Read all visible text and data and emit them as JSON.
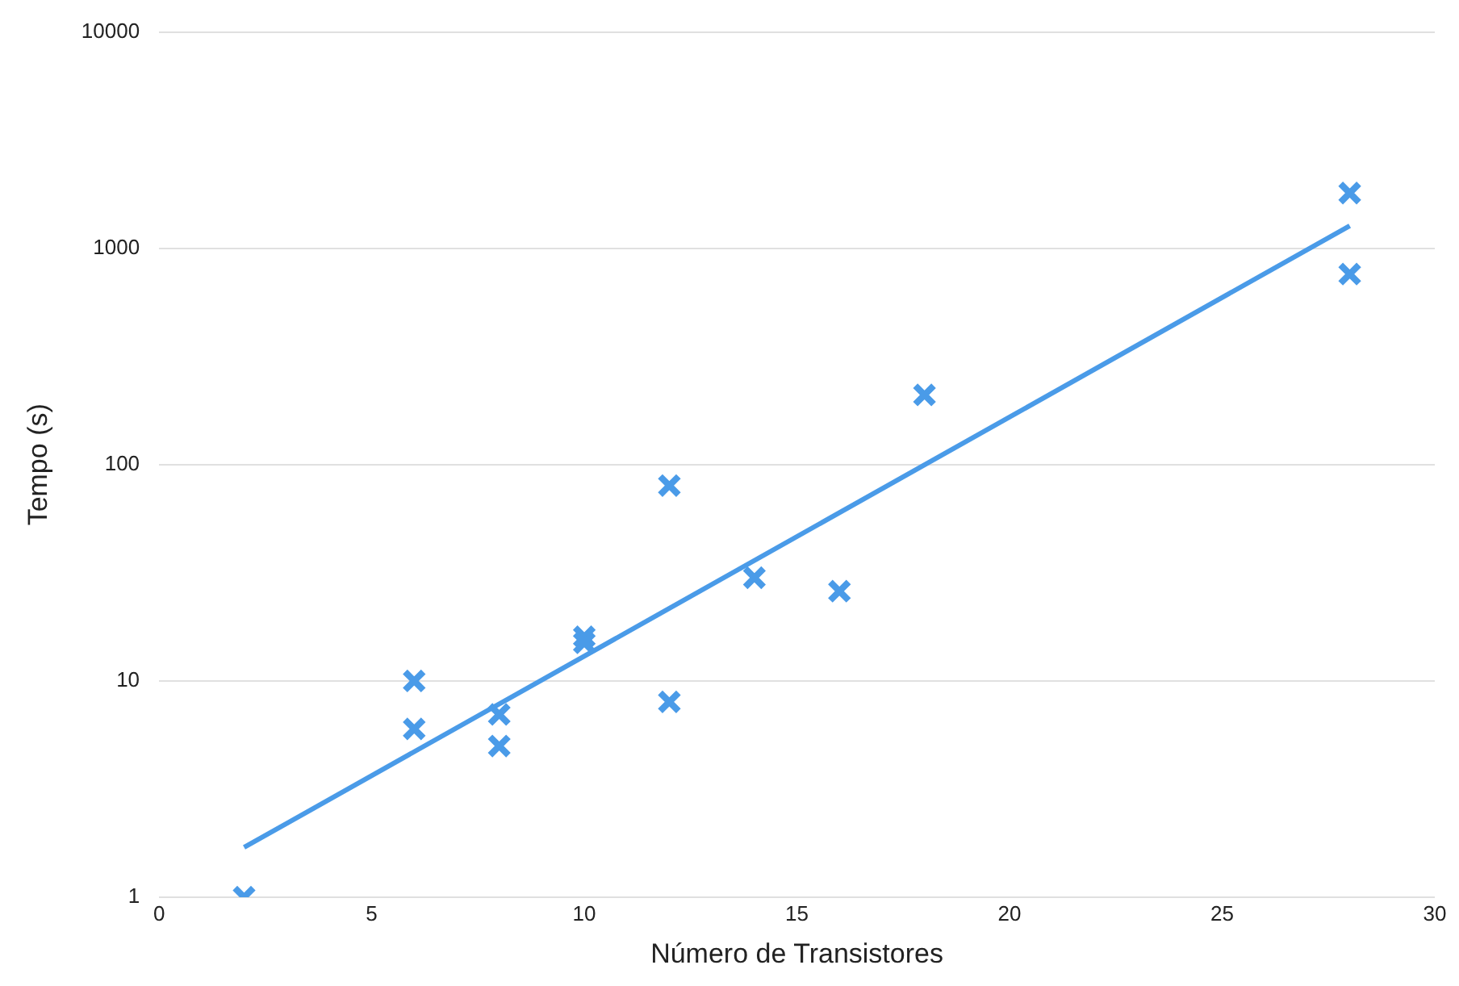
{
  "chart_data": {
    "type": "scatter",
    "xlabel": "Número de Transistores",
    "ylabel": "Tempo (s)",
    "log": "y",
    "grid": "y",
    "legend": false,
    "marker": "cross",
    "xlim": [
      0,
      30
    ],
    "xticks": [
      0,
      5,
      10,
      15,
      20,
      25,
      30
    ],
    "ylim": [
      1,
      10000
    ],
    "yticks": [
      1,
      10,
      100,
      1000,
      10000
    ],
    "series": [
      {
        "color": "#4a9be8",
        "x": [
          2,
          6,
          6,
          8,
          8,
          10,
          10,
          12,
          12,
          14,
          16,
          18,
          28,
          28
        ],
        "values": [
          1,
          10,
          6,
          7,
          5,
          16,
          15,
          80,
          8,
          30,
          26,
          210,
          1800,
          760
        ]
      },
      {
        "type": "line",
        "marker": "none",
        "color": "#4a9be8",
        "x": [
          2,
          28
        ],
        "values": [
          1.7,
          1270
        ]
      }
    ]
  }
}
